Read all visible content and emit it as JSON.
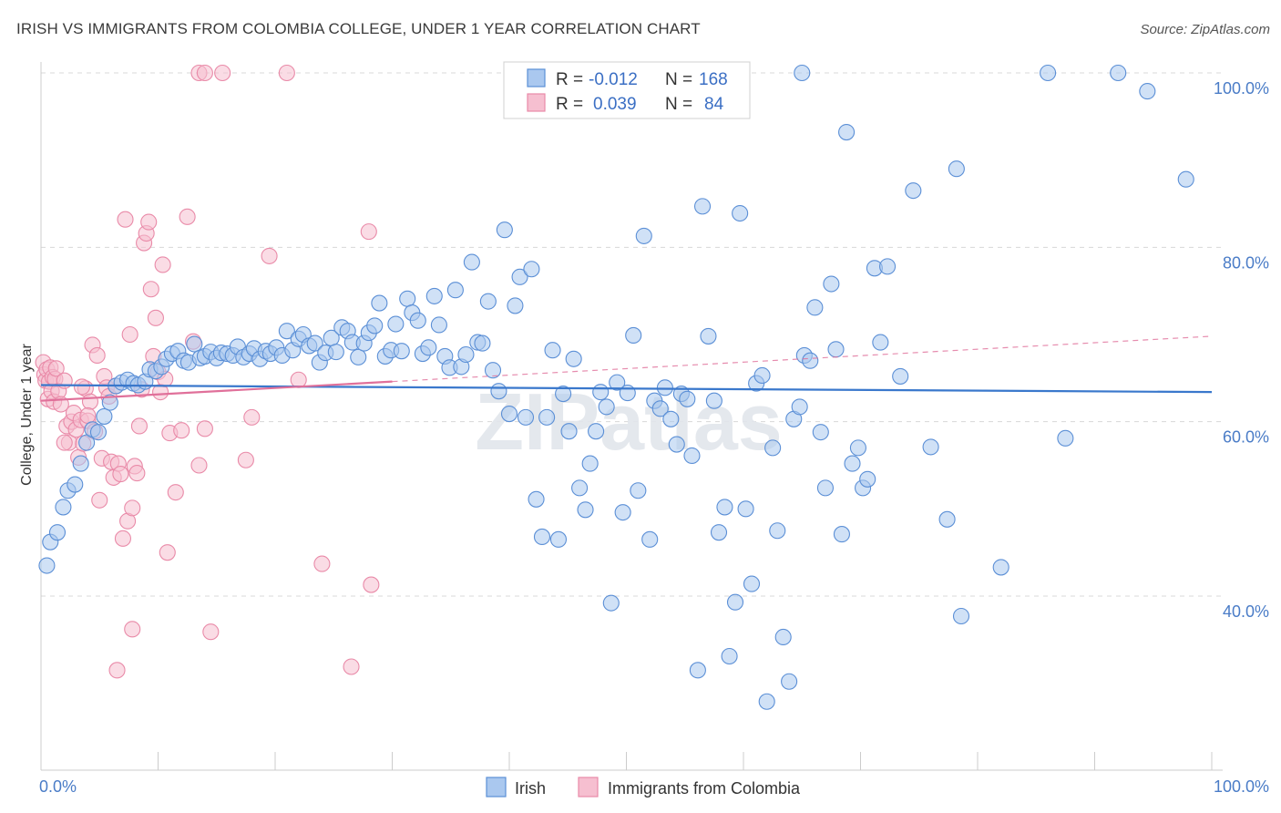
{
  "header": {
    "title": "IRISH VS IMMIGRANTS FROM COLOMBIA COLLEGE, UNDER 1 YEAR CORRELATION CHART",
    "source": "Source: ZipAtlas.com"
  },
  "watermark": "ZIPatlas",
  "colors": {
    "irish_fill": "#aac8ef",
    "irish_stroke": "#5b8fd6",
    "irish_line": "#3a78cc",
    "colombia_fill": "#f6bfd0",
    "colombia_stroke": "#e98aa8",
    "colombia_line": "#e0709a",
    "grid": "#d8d8d8",
    "tick_text": "#4a7cc7"
  },
  "legend": {
    "rows": [
      {
        "r_label": "R =",
        "r_value": "-0.012",
        "n_label": "N =",
        "n_value": "168",
        "series": "irish"
      },
      {
        "r_label": "R =",
        "r_value": "0.039",
        "n_label": "N =",
        "n_value": "84",
        "series": "colombia"
      }
    ]
  },
  "chart_data": {
    "type": "scatter",
    "title": "IRISH VS IMMIGRANTS FROM COLOMBIA COLLEGE, UNDER 1 YEAR CORRELATION CHART",
    "xlabel": "",
    "ylabel": "College, Under 1 year",
    "xlim": [
      0,
      100
    ],
    "ylim": [
      20,
      102
    ],
    "x_tick_labels": [
      "0.0%",
      "100.0%"
    ],
    "y_ticks": [
      40,
      60,
      80,
      100
    ],
    "y_tick_labels": [
      "40.0%",
      "60.0%",
      "80.0%",
      "100.0%"
    ],
    "grid": true,
    "legend_position": "top-center",
    "bottom_legend": [
      "Irish",
      "Immigrants from Colombia"
    ],
    "series": [
      {
        "name": "Irish",
        "key": "irish",
        "R": -0.012,
        "N": 168,
        "trend": {
          "x": [
            0,
            100
          ],
          "y": [
            64.2,
            63.4
          ],
          "style": "solid"
        },
        "points": [
          [
            0.5,
            43.5
          ],
          [
            0.8,
            46.2
          ],
          [
            1.4,
            47.3
          ],
          [
            1.9,
            50.2
          ],
          [
            2.3,
            52.1
          ],
          [
            2.9,
            52.8
          ],
          [
            3.4,
            55.2
          ],
          [
            3.9,
            57.6
          ],
          [
            4.4,
            59.1
          ],
          [
            4.9,
            58.8
          ],
          [
            5.4,
            60.6
          ],
          [
            5.9,
            62.2
          ],
          [
            6.4,
            64.1
          ],
          [
            6.9,
            64.5
          ],
          [
            7.4,
            64.8
          ],
          [
            7.9,
            64.4
          ],
          [
            8.3,
            64.2
          ],
          [
            8.9,
            64.6
          ],
          [
            9.3,
            66.0
          ],
          [
            9.8,
            65.8
          ],
          [
            10.3,
            66.3
          ],
          [
            10.7,
            67.2
          ],
          [
            11.2,
            67.8
          ],
          [
            11.7,
            68.1
          ],
          [
            12.2,
            67.0
          ],
          [
            12.6,
            66.8
          ],
          [
            13.1,
            68.9
          ],
          [
            13.6,
            67.3
          ],
          [
            14.0,
            67.5
          ],
          [
            14.5,
            68.0
          ],
          [
            15.0,
            67.3
          ],
          [
            15.4,
            67.9
          ],
          [
            15.9,
            67.8
          ],
          [
            16.4,
            67.6
          ],
          [
            16.8,
            68.6
          ],
          [
            17.3,
            67.4
          ],
          [
            17.8,
            67.8
          ],
          [
            18.2,
            68.4
          ],
          [
            18.7,
            67.2
          ],
          [
            19.2,
            68.1
          ],
          [
            19.6,
            67.8
          ],
          [
            20.1,
            68.5
          ],
          [
            20.6,
            67.6
          ],
          [
            21.0,
            70.4
          ],
          [
            21.5,
            68.2
          ],
          [
            22.0,
            69.5
          ],
          [
            22.4,
            70.0
          ],
          [
            22.9,
            68.7
          ],
          [
            23.4,
            69.0
          ],
          [
            23.8,
            66.8
          ],
          [
            24.3,
            67.9
          ],
          [
            24.8,
            69.6
          ],
          [
            25.2,
            68.0
          ],
          [
            25.7,
            70.8
          ],
          [
            26.2,
            70.4
          ],
          [
            26.6,
            69.1
          ],
          [
            27.1,
            67.4
          ],
          [
            27.6,
            69.0
          ],
          [
            28.0,
            70.2
          ],
          [
            28.5,
            71.0
          ],
          [
            28.9,
            73.6
          ],
          [
            29.4,
            67.5
          ],
          [
            29.9,
            68.2
          ],
          [
            30.3,
            71.2
          ],
          [
            30.8,
            68.1
          ],
          [
            31.3,
            74.1
          ],
          [
            31.7,
            72.5
          ],
          [
            32.2,
            71.6
          ],
          [
            32.6,
            67.8
          ],
          [
            33.1,
            68.5
          ],
          [
            33.6,
            74.4
          ],
          [
            34.0,
            71.1
          ],
          [
            34.5,
            67.5
          ],
          [
            34.9,
            66.2
          ],
          [
            35.4,
            75.1
          ],
          [
            35.9,
            66.3
          ],
          [
            36.3,
            67.7
          ],
          [
            36.8,
            78.3
          ],
          [
            37.3,
            69.1
          ],
          [
            37.7,
            69.0
          ],
          [
            38.2,
            73.8
          ],
          [
            38.6,
            65.9
          ],
          [
            39.1,
            63.5
          ],
          [
            39.6,
            82.0
          ],
          [
            40.0,
            60.9
          ],
          [
            40.5,
            73.3
          ],
          [
            40.9,
            76.6
          ],
          [
            41.4,
            60.5
          ],
          [
            41.9,
            77.5
          ],
          [
            42.3,
            51.1
          ],
          [
            42.8,
            46.8
          ],
          [
            43.2,
            60.5
          ],
          [
            43.7,
            68.2
          ],
          [
            44.2,
            46.5
          ],
          [
            44.6,
            63.2
          ],
          [
            45.1,
            58.9
          ],
          [
            45.5,
            67.2
          ],
          [
            46.0,
            52.4
          ],
          [
            46.5,
            49.9
          ],
          [
            46.9,
            55.2
          ],
          [
            47.4,
            58.9
          ],
          [
            47.8,
            63.4
          ],
          [
            48.3,
            61.7
          ],
          [
            48.7,
            39.2
          ],
          [
            49.2,
            64.5
          ],
          [
            49.7,
            49.6
          ],
          [
            50.1,
            63.3
          ],
          [
            50.6,
            69.9
          ],
          [
            51.0,
            52.1
          ],
          [
            51.5,
            81.3
          ],
          [
            52.0,
            46.5
          ],
          [
            52.4,
            62.4
          ],
          [
            52.9,
            61.5
          ],
          [
            53.3,
            63.9
          ],
          [
            53.8,
            60.3
          ],
          [
            54.3,
            57.4
          ],
          [
            54.7,
            63.2
          ],
          [
            55.2,
            62.6
          ],
          [
            55.6,
            56.1
          ],
          [
            56.1,
            31.5
          ],
          [
            56.5,
            84.7
          ],
          [
            57.0,
            69.8
          ],
          [
            57.5,
            62.4
          ],
          [
            57.9,
            47.3
          ],
          [
            58.4,
            50.2
          ],
          [
            58.8,
            33.1
          ],
          [
            59.3,
            39.3
          ],
          [
            59.7,
            83.9
          ],
          [
            60.2,
            50.0
          ],
          [
            60.7,
            41.4
          ],
          [
            61.1,
            64.4
          ],
          [
            61.6,
            65.3
          ],
          [
            62.0,
            27.9
          ],
          [
            62.5,
            57.0
          ],
          [
            62.9,
            47.5
          ],
          [
            63.4,
            35.3
          ],
          [
            63.9,
            30.2
          ],
          [
            64.3,
            60.3
          ],
          [
            64.8,
            61.7
          ],
          [
            65.2,
            67.6
          ],
          [
            65.7,
            67.0
          ],
          [
            66.1,
            73.1
          ],
          [
            66.6,
            58.8
          ],
          [
            67.0,
            52.4
          ],
          [
            67.5,
            75.8
          ],
          [
            67.9,
            68.3
          ],
          [
            68.4,
            47.1
          ],
          [
            68.8,
            93.2
          ],
          [
            69.3,
            55.2
          ],
          [
            69.8,
            57.0
          ],
          [
            70.2,
            52.4
          ],
          [
            70.6,
            53.4
          ],
          [
            71.2,
            77.6
          ],
          [
            71.7,
            69.1
          ],
          [
            72.3,
            77.8
          ],
          [
            78.2,
            89.0
          ],
          [
            73.4,
            65.2
          ],
          [
            74.5,
            86.5
          ],
          [
            76.0,
            57.1
          ],
          [
            77.4,
            48.8
          ],
          [
            78.6,
            37.7
          ],
          [
            82.0,
            43.3
          ],
          [
            87.5,
            58.1
          ],
          [
            94.5,
            97.9
          ],
          [
            97.8,
            87.8
          ],
          [
            65.0,
            100
          ],
          [
            86.0,
            100
          ],
          [
            92.0,
            100
          ]
        ]
      },
      {
        "name": "Immigrants from Colombia",
        "key": "colombia",
        "R": 0.039,
        "N": 84,
        "trend": {
          "x": [
            0,
            30
          ],
          "y": [
            62.4,
            64.6
          ],
          "style": "solid"
        },
        "trend_ext": {
          "x": [
            30,
            100
          ],
          "y": [
            64.6,
            69.8
          ],
          "style": "dashed"
        },
        "points": [
          [
            0.2,
            66.8
          ],
          [
            0.3,
            65.4
          ],
          [
            0.4,
            64.7
          ],
          [
            0.5,
            66.0
          ],
          [
            0.6,
            62.6
          ],
          [
            0.7,
            64.6
          ],
          [
            0.8,
            66.2
          ],
          [
            0.9,
            63.5
          ],
          [
            1.0,
            65.1
          ],
          [
            1.1,
            62.3
          ],
          [
            1.2,
            64.9
          ],
          [
            1.3,
            66.1
          ],
          [
            1.5,
            63.5
          ],
          [
            1.7,
            62.0
          ],
          [
            2.0,
            64.7
          ],
          [
            2.2,
            59.5
          ],
          [
            2.4,
            57.6
          ],
          [
            2.6,
            60.0
          ],
          [
            2.8,
            61.0
          ],
          [
            3.0,
            59.1
          ],
          [
            3.2,
            55.9
          ],
          [
            3.4,
            60.2
          ],
          [
            3.6,
            57.5
          ],
          [
            3.8,
            63.8
          ],
          [
            4.0,
            60.1
          ],
          [
            4.2,
            62.3
          ],
          [
            4.4,
            68.8
          ],
          [
            4.6,
            58.9
          ],
          [
            4.8,
            67.6
          ],
          [
            5.0,
            51.0
          ],
          [
            5.2,
            55.8
          ],
          [
            5.4,
            65.2
          ],
          [
            5.6,
            63.9
          ],
          [
            5.8,
            62.9
          ],
          [
            6.0,
            55.4
          ],
          [
            6.2,
            53.6
          ],
          [
            6.4,
            64.1
          ],
          [
            6.6,
            55.2
          ],
          [
            6.8,
            54.0
          ],
          [
            7.0,
            46.6
          ],
          [
            7.2,
            83.2
          ],
          [
            7.4,
            48.6
          ],
          [
            7.6,
            70.0
          ],
          [
            7.8,
            50.1
          ],
          [
            8.0,
            54.9
          ],
          [
            8.2,
            54.1
          ],
          [
            8.4,
            59.5
          ],
          [
            8.6,
            63.7
          ],
          [
            8.8,
            80.5
          ],
          [
            9.0,
            81.6
          ],
          [
            9.2,
            82.9
          ],
          [
            9.4,
            75.2
          ],
          [
            9.6,
            67.5
          ],
          [
            9.8,
            71.9
          ],
          [
            10.0,
            65.7
          ],
          [
            10.2,
            63.4
          ],
          [
            10.4,
            78.0
          ],
          [
            10.6,
            64.9
          ],
          [
            10.8,
            45.0
          ],
          [
            11.0,
            58.7
          ],
          [
            11.5,
            51.9
          ],
          [
            12.0,
            59.0
          ],
          [
            12.5,
            83.5
          ],
          [
            13.0,
            69.2
          ],
          [
            13.5,
            55.0
          ],
          [
            14.0,
            59.2
          ],
          [
            14.5,
            35.9
          ],
          [
            17.5,
            55.6
          ],
          [
            18.0,
            60.5
          ],
          [
            19.5,
            79.0
          ],
          [
            22.0,
            64.8
          ],
          [
            24.0,
            43.7
          ],
          [
            26.5,
            31.9
          ],
          [
            28.0,
            81.8
          ],
          [
            28.2,
            41.3
          ],
          [
            6.5,
            31.5
          ],
          [
            7.8,
            36.2
          ],
          [
            13.5,
            100
          ],
          [
            14.0,
            100
          ],
          [
            15.5,
            100
          ],
          [
            21.0,
            100
          ],
          [
            2.0,
            57.6
          ],
          [
            3.5,
            64.0
          ],
          [
            4.0,
            60.7
          ]
        ]
      }
    ]
  }
}
